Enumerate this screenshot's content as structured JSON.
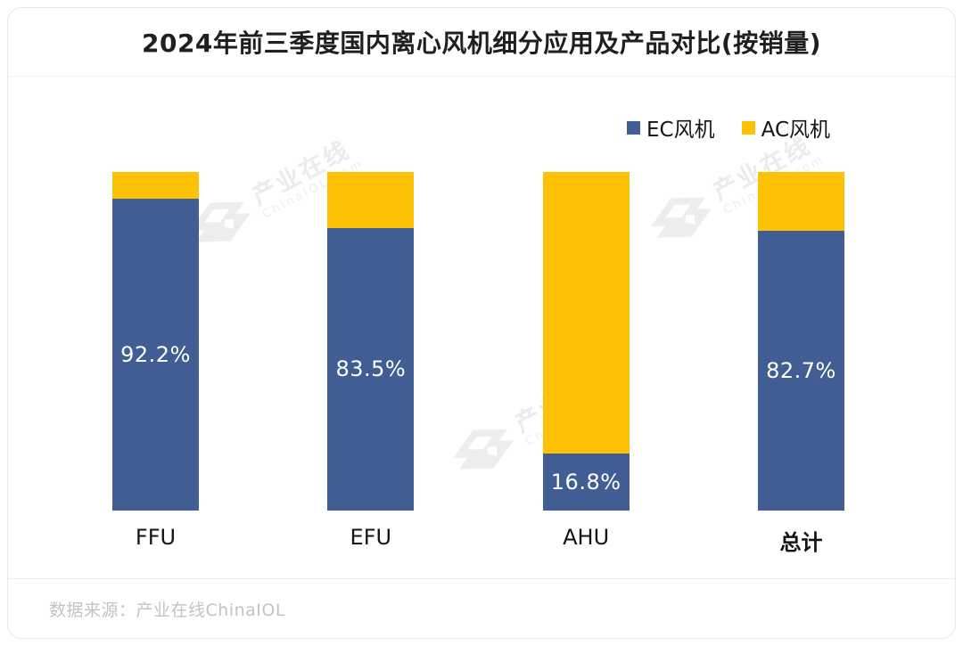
{
  "header": {
    "title": "2024年前三季度国内离心风机细分应用及产品对比(按销量)"
  },
  "chart_data": {
    "type": "bar",
    "stacked": true,
    "orientation": "vertical",
    "title": "2024年前三季度国内离心风机细分应用及产品对比(按销量)",
    "categories": [
      "FFU",
      "EFU",
      "AHU",
      "总计"
    ],
    "series": [
      {
        "name": "EC风机",
        "color": "#415E94",
        "values": [
          92.2,
          83.5,
          16.8,
          82.7
        ],
        "labels": [
          "92.2%",
          "83.5%",
          "16.8%",
          "82.7%"
        ]
      },
      {
        "name": "AC风机",
        "color": "#FDC105",
        "values": [
          7.8,
          16.5,
          83.2,
          17.3
        ],
        "labels": [
          "",
          "",
          "",
          ""
        ]
      }
    ],
    "value_unit": "%",
    "ylim": [
      0,
      100
    ],
    "grid": false,
    "legend_position": "top-right",
    "xlabel": "",
    "ylabel": ""
  },
  "watermark": {
    "line1": "产业在线",
    "line2": "ChinaIOL.com"
  },
  "footer": {
    "source": "数据来源：产业在线ChinaIOL"
  }
}
